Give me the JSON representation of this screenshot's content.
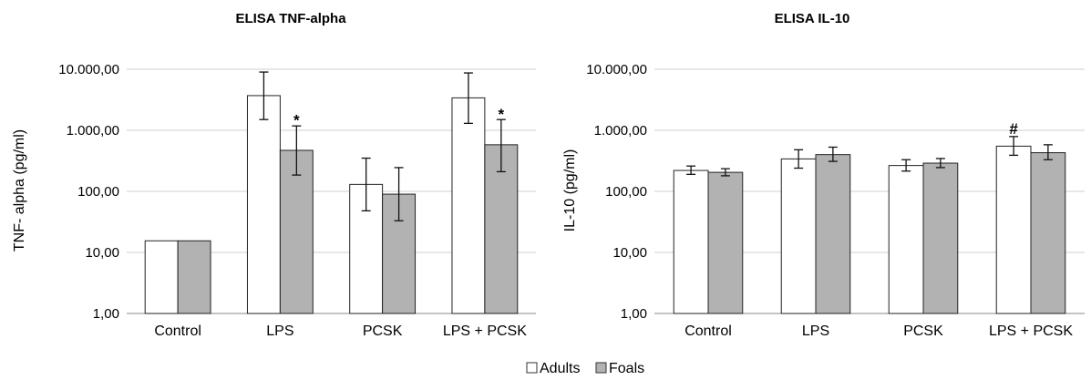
{
  "chart_data": [
    {
      "type": "bar",
      "title": "ELISA TNF-alpha",
      "ylabel": "TNF- alpha (pg/ml)",
      "xlabel": "",
      "yscale": "log",
      "ylim": [
        1,
        10000
      ],
      "yticks": [
        1,
        10,
        100,
        1000,
        10000
      ],
      "ytick_labels": [
        "1,00",
        "10,00",
        "100,00",
        "1.000,00",
        "10.000,00"
      ],
      "grid": true,
      "categories": [
        "Control",
        "LPS",
        "PCSK",
        "LPS + PCSK"
      ],
      "series": [
        {
          "name": "Adults",
          "color": "#ffffff",
          "values": [
            15.5,
            3700,
            130,
            3400
          ],
          "err_low": [
            15.5,
            1500,
            48,
            1300
          ],
          "err_high": [
            15.5,
            9000,
            350,
            8700
          ]
        },
        {
          "name": "Foals",
          "color": "#b2b2b2",
          "values": [
            15.5,
            470,
            90,
            580
          ],
          "err_low": [
            15.5,
            185,
            33,
            210
          ],
          "err_high": [
            15.5,
            1180,
            245,
            1500
          ]
        }
      ],
      "annotations": [
        {
          "text": "*",
          "category": "LPS",
          "series": "Foals",
          "y": 1600
        },
        {
          "text": "*",
          "category": "LPS + PCSK",
          "series": "Foals",
          "y": 2000
        }
      ]
    },
    {
      "type": "bar",
      "title": "ELISA IL-10",
      "ylabel": "IL-10 (pg/ml)",
      "xlabel": "",
      "yscale": "log",
      "ylim": [
        1,
        10000
      ],
      "yticks": [
        1,
        10,
        100,
        1000,
        10000
      ],
      "ytick_labels": [
        "1,00",
        "10,00",
        "100,00",
        "1.000,00",
        "10.000,00"
      ],
      "grid": true,
      "categories": [
        "Control",
        "LPS",
        "PCSK",
        "LPS + PCSK"
      ],
      "series": [
        {
          "name": "Adults",
          "color": "#ffffff",
          "values": [
            220,
            340,
            265,
            550
          ],
          "err_low": [
            190,
            240,
            215,
            390
          ],
          "err_high": [
            260,
            480,
            330,
            790
          ]
        },
        {
          "name": "Foals",
          "color": "#b2b2b2",
          "values": [
            205,
            400,
            290,
            430
          ],
          "err_low": [
            180,
            310,
            245,
            330
          ],
          "err_high": [
            235,
            530,
            345,
            580
          ]
        }
      ],
      "annotations": [
        {
          "text": "#",
          "category": "LPS + PCSK",
          "series": "Adults",
          "y": 1150
        }
      ]
    }
  ],
  "legend": {
    "placement": "bottom-center",
    "items": [
      {
        "label": "Adults",
        "color": "#ffffff"
      },
      {
        "label": "Foals",
        "color": "#b2b2b2"
      }
    ]
  }
}
